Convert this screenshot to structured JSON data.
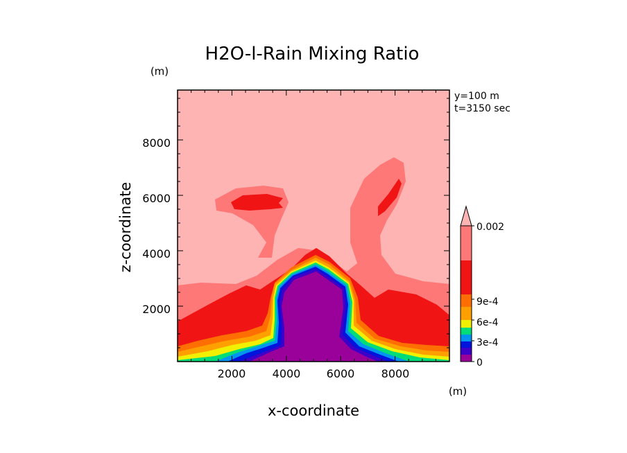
{
  "chart_data": {
    "type": "heatmap",
    "title": "H2O-l-Rain Mixing Ratio",
    "xlabel": "x-coordinate",
    "ylabel": "z-coordinate",
    "x_unit": "(m)",
    "y_unit": "(m)",
    "annotations": [
      "y=100 m",
      "t=3150 sec"
    ],
    "xlim": [
      0,
      10000
    ],
    "ylim": [
      0,
      9800
    ],
    "x_ticks": [
      2000,
      4000,
      6000,
      8000
    ],
    "y_ticks": [
      2000,
      4000,
      6000,
      8000
    ],
    "colorbar": {
      "tick_labels": [
        "0.002",
        "9e-4",
        "6e-4",
        "3e-4",
        "0"
      ],
      "levels": [
        {
          "value": 0,
          "color": "#9a009a"
        },
        {
          "value": 0.00015,
          "color": "#3c00c8"
        },
        {
          "value": 0.0003,
          "color": "#0014dc"
        },
        {
          "value": 0.00045,
          "color": "#0096f0"
        },
        {
          "value": 0.0006,
          "color": "#00dc78"
        },
        {
          "value": 0.00075,
          "color": "#f0f000"
        },
        {
          "value": 0.0009,
          "color": "#ffa000"
        },
        {
          "value": 0.00105,
          "color": "#ff6e00"
        },
        {
          "value": 0.0012,
          "color": "#f01414"
        },
        {
          "value": 0.0016,
          "color": "#ff7878"
        },
        {
          "value": 0.002,
          "color": "#ffb4b4"
        }
      ]
    },
    "colors": {
      "background_field": "#ffb4b4",
      "outer_band": "#ff7878",
      "red_core": "#f01414",
      "dry_core": "#9a009a"
    }
  }
}
